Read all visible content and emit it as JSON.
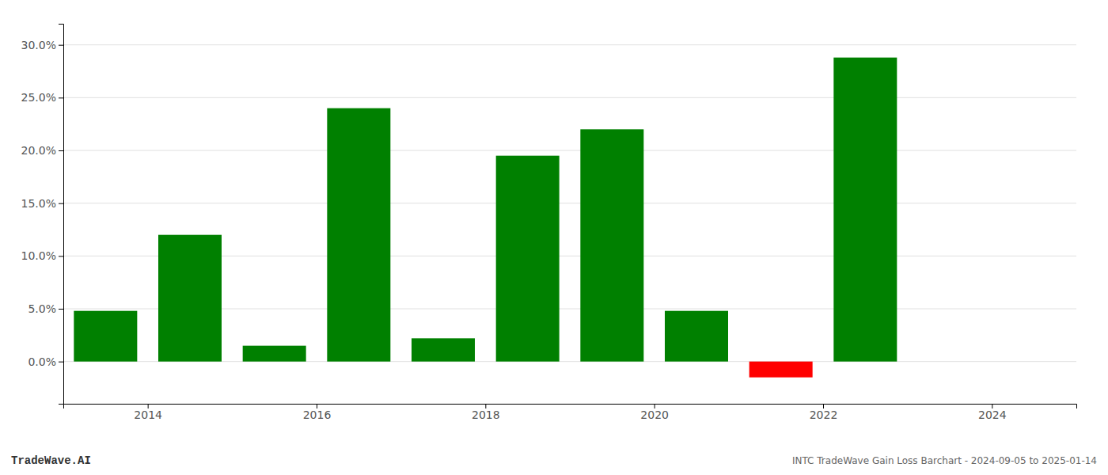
{
  "chart_data": {
    "type": "bar",
    "title": "INTC TradeWave Gain Loss Barchart - 2024-09-05 to 2025-01-14",
    "annotations": [
      "TradeWave.AI"
    ],
    "x": [
      2013.5,
      2014.5,
      2015.5,
      2016.5,
      2017.5,
      2018.5,
      2019.5,
      2020.5,
      2021.5,
      2022.5
    ],
    "values": [
      0.048,
      0.12,
      0.015,
      0.24,
      0.022,
      0.195,
      0.22,
      0.048,
      -0.015,
      0.288
    ],
    "colors": [
      "#008000",
      "#008000",
      "#008000",
      "#008000",
      "#008000",
      "#008000",
      "#008000",
      "#008000",
      "#ff0000",
      "#008000"
    ],
    "xlim": [
      2013,
      2025
    ],
    "xticks": [
      2014,
      2016,
      2018,
      2020,
      2022,
      2024
    ],
    "ylim": [
      -0.04,
      0.32
    ],
    "yticks": [
      {
        "value": 0.0,
        "label": "0.0%"
      },
      {
        "value": 0.05,
        "label": "5.0%"
      },
      {
        "value": 0.1,
        "label": "10.0%"
      },
      {
        "value": 0.15,
        "label": "15.0%"
      },
      {
        "value": 0.2,
        "label": "20.0%"
      },
      {
        "value": 0.25,
        "label": "25.0%"
      },
      {
        "value": 0.3,
        "label": "30.0%"
      }
    ],
    "grid": true
  }
}
